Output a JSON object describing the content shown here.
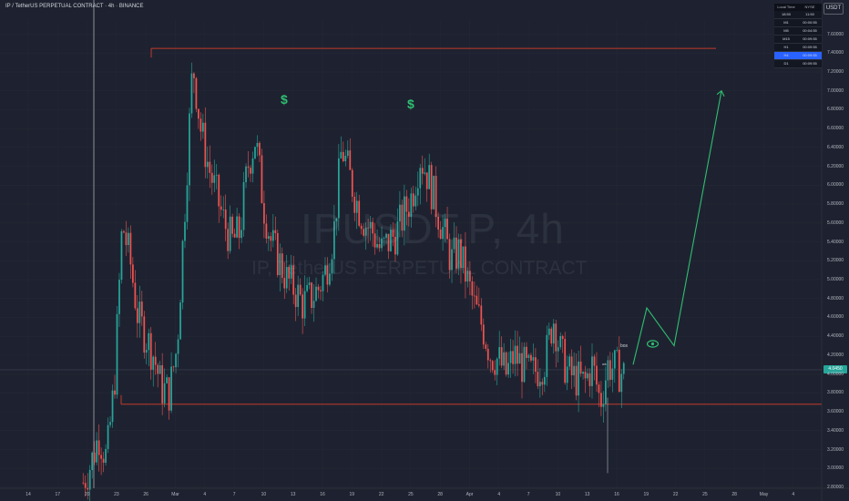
{
  "header": {
    "title": "IP / TetherUS PERPETUAL CONTRACT · 4h · BINANCE",
    "currency": "USDT"
  },
  "watermark": {
    "symbol": "IPUSDT.P, 4h",
    "name": "IP, TetherUS PERPETUAL CONTRACT"
  },
  "timeframe_table": {
    "headers": [
      "Local Time",
      "NYSE"
    ],
    "head_values": [
      "18:50",
      "11:50"
    ],
    "rows": [
      {
        "tf": "M1",
        "value": "00:00:55",
        "selected": false
      },
      {
        "tf": "M5",
        "value": "00:04:55",
        "selected": false
      },
      {
        "tf": "M15",
        "value": "00:09:55",
        "selected": false
      },
      {
        "tf": "H1",
        "value": "00:09:55",
        "selected": false
      },
      {
        "tf": "H4",
        "value": "00:09:55",
        "selected": true
      },
      {
        "tf": "D1",
        "value": "00:09:55",
        "selected": false
      }
    ]
  },
  "current_price": "4.0450",
  "annotations": {
    "dollar_1": "$",
    "dollar_2": "$",
    "bos": "bos",
    "wk": "wk"
  },
  "colors": {
    "up": "#26a69a",
    "down": "#ef5350",
    "projection": "#2fbf71",
    "level_line": "#c0392b"
  },
  "chart_data": {
    "type": "candlestick",
    "y_ticks": [
      "7.60000",
      "7.40000",
      "7.20000",
      "7.00000",
      "6.80000",
      "6.60000",
      "6.40000",
      "6.20000",
      "6.00000",
      "5.80000",
      "5.60000",
      "5.40000",
      "5.20000",
      "5.00000",
      "4.80000",
      "4.60000",
      "4.40000",
      "4.20000",
      "4.00000",
      "3.80000",
      "3.60000",
      "3.40000",
      "3.20000",
      "3.00000",
      "2.80000"
    ],
    "x_ticks": [
      "14",
      "17",
      "20",
      "23",
      "26",
      "Mar",
      "4",
      "7",
      "10",
      "13",
      "16",
      "19",
      "22",
      "25",
      "28",
      "Apr",
      "4",
      "7",
      "10",
      "13",
      "16",
      "19",
      "22",
      "25",
      "28",
      "May",
      "4"
    ],
    "ylim": [
      2.79,
      7.75
    ],
    "resistance_level": 7.45,
    "support_level": 3.68,
    "current_price": 4.045,
    "price_path": [
      [
        0,
        2.85
      ],
      [
        2,
        3.05
      ],
      [
        4,
        3.35
      ],
      [
        6,
        3.1
      ],
      [
        8,
        3.9
      ],
      [
        10,
        5.6
      ],
      [
        12,
        5.2
      ],
      [
        14,
        4.6
      ],
      [
        16,
        4.4
      ],
      [
        18,
        4.2
      ],
      [
        20,
        3.85
      ],
      [
        22,
        3.8
      ],
      [
        24,
        4.3
      ],
      [
        26,
        5.8
      ],
      [
        28,
        7.3
      ],
      [
        30,
        6.6
      ],
      [
        32,
        6.2
      ],
      [
        34,
        5.9
      ],
      [
        36,
        5.6
      ],
      [
        38,
        5.4
      ],
      [
        40,
        5.5
      ],
      [
        42,
        6.2
      ],
      [
        44,
        6.5
      ],
      [
        46,
        5.8
      ],
      [
        48,
        5.4
      ],
      [
        50,
        5.2
      ],
      [
        52,
        5.0
      ],
      [
        54,
        4.9
      ],
      [
        56,
        4.75
      ],
      [
        58,
        4.8
      ],
      [
        60,
        4.9
      ],
      [
        62,
        5.1
      ],
      [
        64,
        5.5
      ],
      [
        66,
        6.4
      ],
      [
        68,
        6.1
      ],
      [
        70,
        5.8
      ],
      [
        72,
        5.6
      ],
      [
        74,
        5.5
      ],
      [
        76,
        5.3
      ],
      [
        78,
        5.4
      ],
      [
        80,
        5.5
      ],
      [
        82,
        5.7
      ],
      [
        84,
        5.9
      ],
      [
        86,
        6.3
      ],
      [
        88,
        6.1
      ],
      [
        90,
        5.8
      ],
      [
        92,
        5.5
      ],
      [
        94,
        5.2
      ],
      [
        96,
        5.3
      ],
      [
        98,
        5.0
      ],
      [
        100,
        4.7
      ],
      [
        102,
        4.5
      ],
      [
        104,
        4.2
      ],
      [
        106,
        4.15
      ],
      [
        108,
        4.0
      ],
      [
        110,
        4.2
      ],
      [
        112,
        4.1
      ],
      [
        114,
        4.0
      ],
      [
        116,
        4.05
      ],
      [
        118,
        4.15
      ],
      [
        120,
        4.6
      ],
      [
        122,
        4.2
      ],
      [
        124,
        4.0
      ],
      [
        126,
        3.95
      ],
      [
        128,
        3.9
      ],
      [
        130,
        4.1
      ],
      [
        132,
        3.7
      ],
      [
        134,
        4.1
      ],
      [
        136,
        4.05
      ],
      [
        138,
        4.0
      ]
    ],
    "projection_path": [
      [
        4.1
      ],
      [
        4.7
      ],
      [
        4.3
      ],
      [
        7.0
      ]
    ]
  }
}
